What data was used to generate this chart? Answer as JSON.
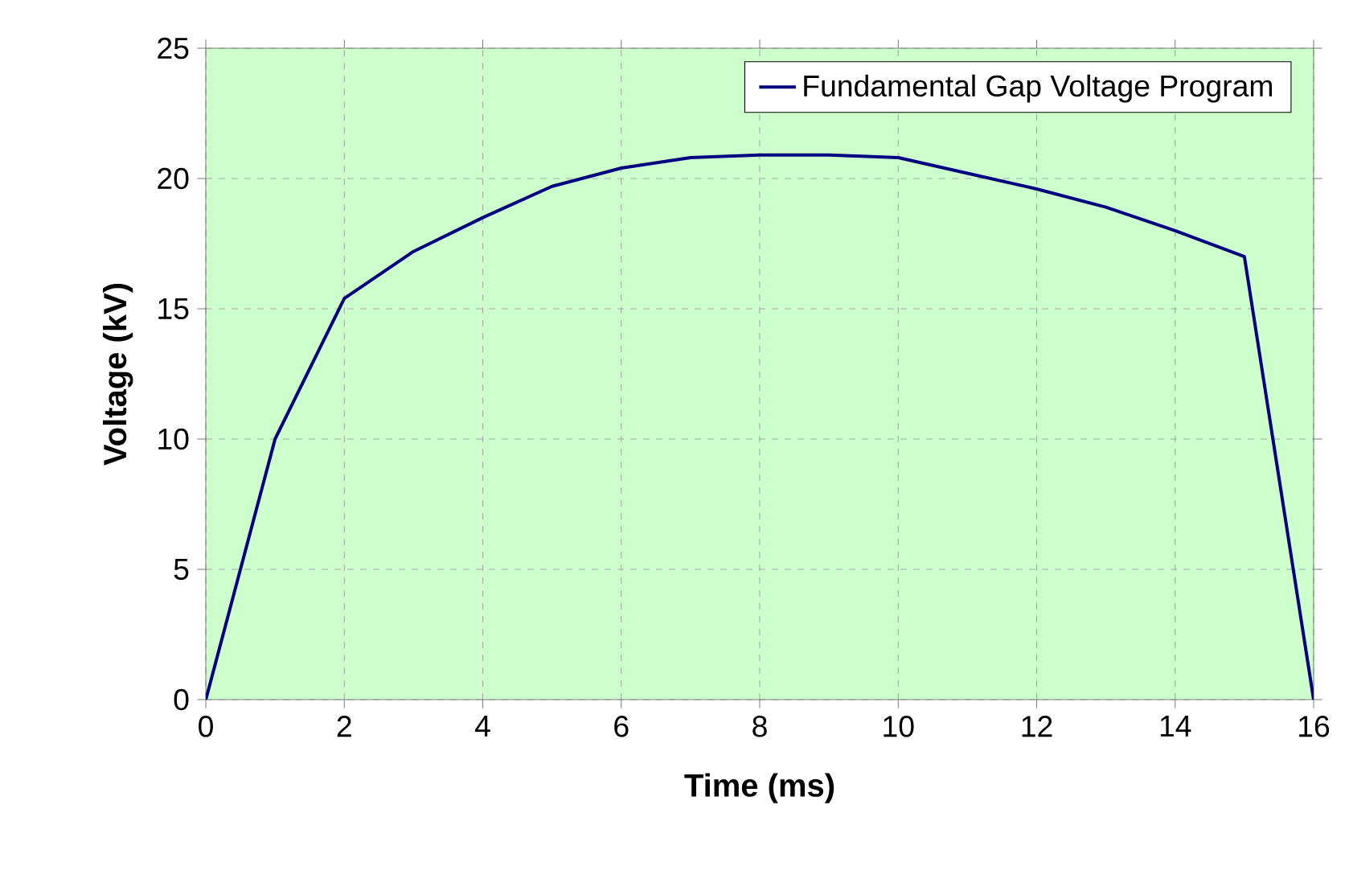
{
  "chart_data": {
    "type": "line",
    "xlabel": "Time (ms)",
    "ylabel": "Voltage (kV)",
    "x": [
      0,
      1,
      2,
      3,
      4,
      5,
      6,
      7,
      8,
      9,
      10,
      11,
      12,
      13,
      14,
      15,
      16
    ],
    "series": [
      {
        "name": "Fundamental Gap Voltage Program",
        "color": "#000080",
        "values": [
          0,
          10,
          15.4,
          17.2,
          18.5,
          19.7,
          20.4,
          20.8,
          20.9,
          20.9,
          20.8,
          20.2,
          19.6,
          18.9,
          18.0,
          17.0,
          0
        ]
      }
    ],
    "xlim": [
      0,
      16
    ],
    "xticks": [
      0,
      2,
      4,
      6,
      8,
      10,
      12,
      14,
      16
    ],
    "ylim": [
      0,
      25
    ],
    "yticks": [
      0,
      5,
      10,
      15,
      20,
      25
    ],
    "grid": true,
    "legend": "top right",
    "marker": "none",
    "line_style": "solid"
  }
}
